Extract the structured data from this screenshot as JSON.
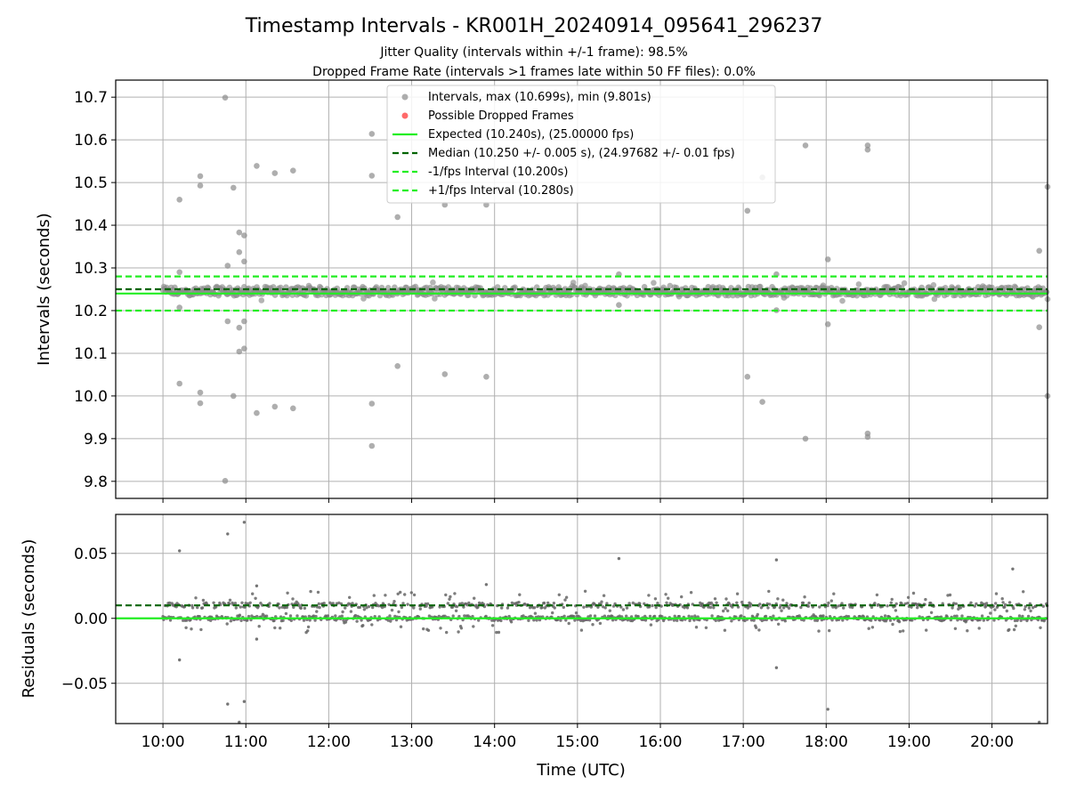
{
  "chart_data": {
    "type": "scatter",
    "title": "Timestamp Intervals - KR001H_20240914_095641_296237",
    "subtitle_1": "Jitter Quality (intervals within +/-1 frame): 98.5%",
    "subtitle_2": "Dropped Frame Rate (intervals >1 frames late within 50 FF files): 0.0%",
    "xlabel": "Time (UTC)",
    "x_ticks": [
      "10:00",
      "11:00",
      "12:00",
      "13:00",
      "14:00",
      "15:00",
      "16:00",
      "17:00",
      "18:00",
      "19:00",
      "20:00"
    ],
    "x_range_hours": [
      9.43,
      20.67
    ],
    "top_panel": {
      "ylabel": "Intervals (seconds)",
      "ylim": [
        9.76,
        10.74
      ],
      "y_ticks": [
        "9.8",
        "9.9",
        "10.0",
        "10.1",
        "10.2",
        "10.3",
        "10.4",
        "10.5",
        "10.6",
        "10.7"
      ],
      "grid": true,
      "legend_position": "top-center",
      "legend": [
        "Intervals, max (10.699s), min (9.801s)",
        "Possible Dropped Frames",
        "Expected (10.240s), (25.00000 fps)",
        "Median (10.250 +/- 0.005 s), (24.97682 +/- 0.01 fps)",
        "-1/fps Interval (10.200s)",
        "+1/fps Interval (10.280s)"
      ],
      "expected": 10.24,
      "median": 10.25,
      "minus_interval": 10.2,
      "plus_interval": 10.28,
      "colors": {
        "intervals": "#8c8c8c",
        "dropped": "#ff5050",
        "expected": "#22ee22",
        "median": "#006400",
        "bounds": "#22ee22"
      },
      "outliers": [
        [
          10.75,
          10.699
        ],
        [
          10.75,
          9.801
        ],
        [
          10.2,
          10.46
        ],
        [
          10.2,
          10.029
        ],
        [
          10.2,
          10.29
        ],
        [
          10.2,
          10.207
        ],
        [
          10.45,
          10.515
        ],
        [
          10.45,
          10.493
        ],
        [
          10.45,
          10.008
        ],
        [
          10.45,
          9.983
        ],
        [
          10.85,
          10.488
        ],
        [
          10.85,
          10.0
        ],
        [
          10.78,
          10.305
        ],
        [
          10.78,
          10.175
        ],
        [
          10.92,
          10.383
        ],
        [
          10.98,
          10.376
        ],
        [
          10.92,
          10.337
        ],
        [
          10.98,
          10.315
        ],
        [
          10.92,
          10.16
        ],
        [
          10.98,
          10.175
        ],
        [
          10.92,
          10.104
        ],
        [
          10.98,
          10.111
        ],
        [
          11.13,
          10.539
        ],
        [
          11.13,
          9.96
        ],
        [
          11.35,
          10.522
        ],
        [
          11.35,
          9.975
        ],
        [
          11.57,
          10.528
        ],
        [
          11.57,
          9.971
        ],
        [
          12.52,
          10.614
        ],
        [
          12.52,
          10.516
        ],
        [
          12.52,
          9.982
        ],
        [
          12.52,
          9.883
        ],
        [
          12.83,
          10.419
        ],
        [
          12.83,
          10.07
        ],
        [
          13.4,
          10.448
        ],
        [
          13.4,
          10.051
        ],
        [
          13.9,
          10.448
        ],
        [
          13.9,
          10.045
        ],
        [
          17.05,
          10.434
        ],
        [
          17.05,
          10.045
        ],
        [
          17.23,
          10.512
        ],
        [
          17.23,
          9.986
        ],
        [
          17.75,
          10.587
        ],
        [
          17.75,
          9.9
        ],
        [
          18.02,
          10.32
        ],
        [
          18.02,
          10.168
        ],
        [
          18.5,
          10.587
        ],
        [
          18.5,
          10.577
        ],
        [
          18.5,
          9.912
        ],
        [
          18.5,
          9.904
        ],
        [
          20.57,
          10.34
        ],
        [
          20.57,
          10.161
        ],
        [
          20.67,
          10.49
        ],
        [
          20.67,
          10.0
        ],
        [
          15.5,
          10.285
        ],
        [
          15.5,
          10.213
        ],
        [
          17.4,
          10.285
        ],
        [
          17.4,
          10.201
        ]
      ]
    },
    "bottom_panel": {
      "ylabel": "Residuals (seconds)",
      "ylim": [
        -0.081,
        0.08
      ],
      "y_ticks": [
        "−0.05",
        "0.00",
        "0.05"
      ],
      "grid": true,
      "expected": 0.0,
      "median": 0.01,
      "outliers": [
        [
          10.78,
          0.065
        ],
        [
          10.98,
          0.074
        ],
        [
          10.2,
          0.052
        ],
        [
          10.2,
          -0.032
        ],
        [
          10.78,
          -0.066
        ],
        [
          10.98,
          -0.064
        ],
        [
          10.92,
          -0.08
        ],
        [
          15.5,
          0.046
        ],
        [
          17.4,
          0.045
        ],
        [
          17.4,
          -0.038
        ],
        [
          18.02,
          -0.07
        ],
        [
          20.57,
          -0.08
        ],
        [
          20.25,
          0.038
        ],
        [
          13.9,
          0.026
        ],
        [
          11.13,
          0.025
        ],
        [
          11.13,
          -0.016
        ]
      ]
    },
    "series": [
      {
        "name": "Intervals, max (10.699s), min (9.801s)"
      },
      {
        "name": "Possible Dropped Frames"
      }
    ]
  }
}
